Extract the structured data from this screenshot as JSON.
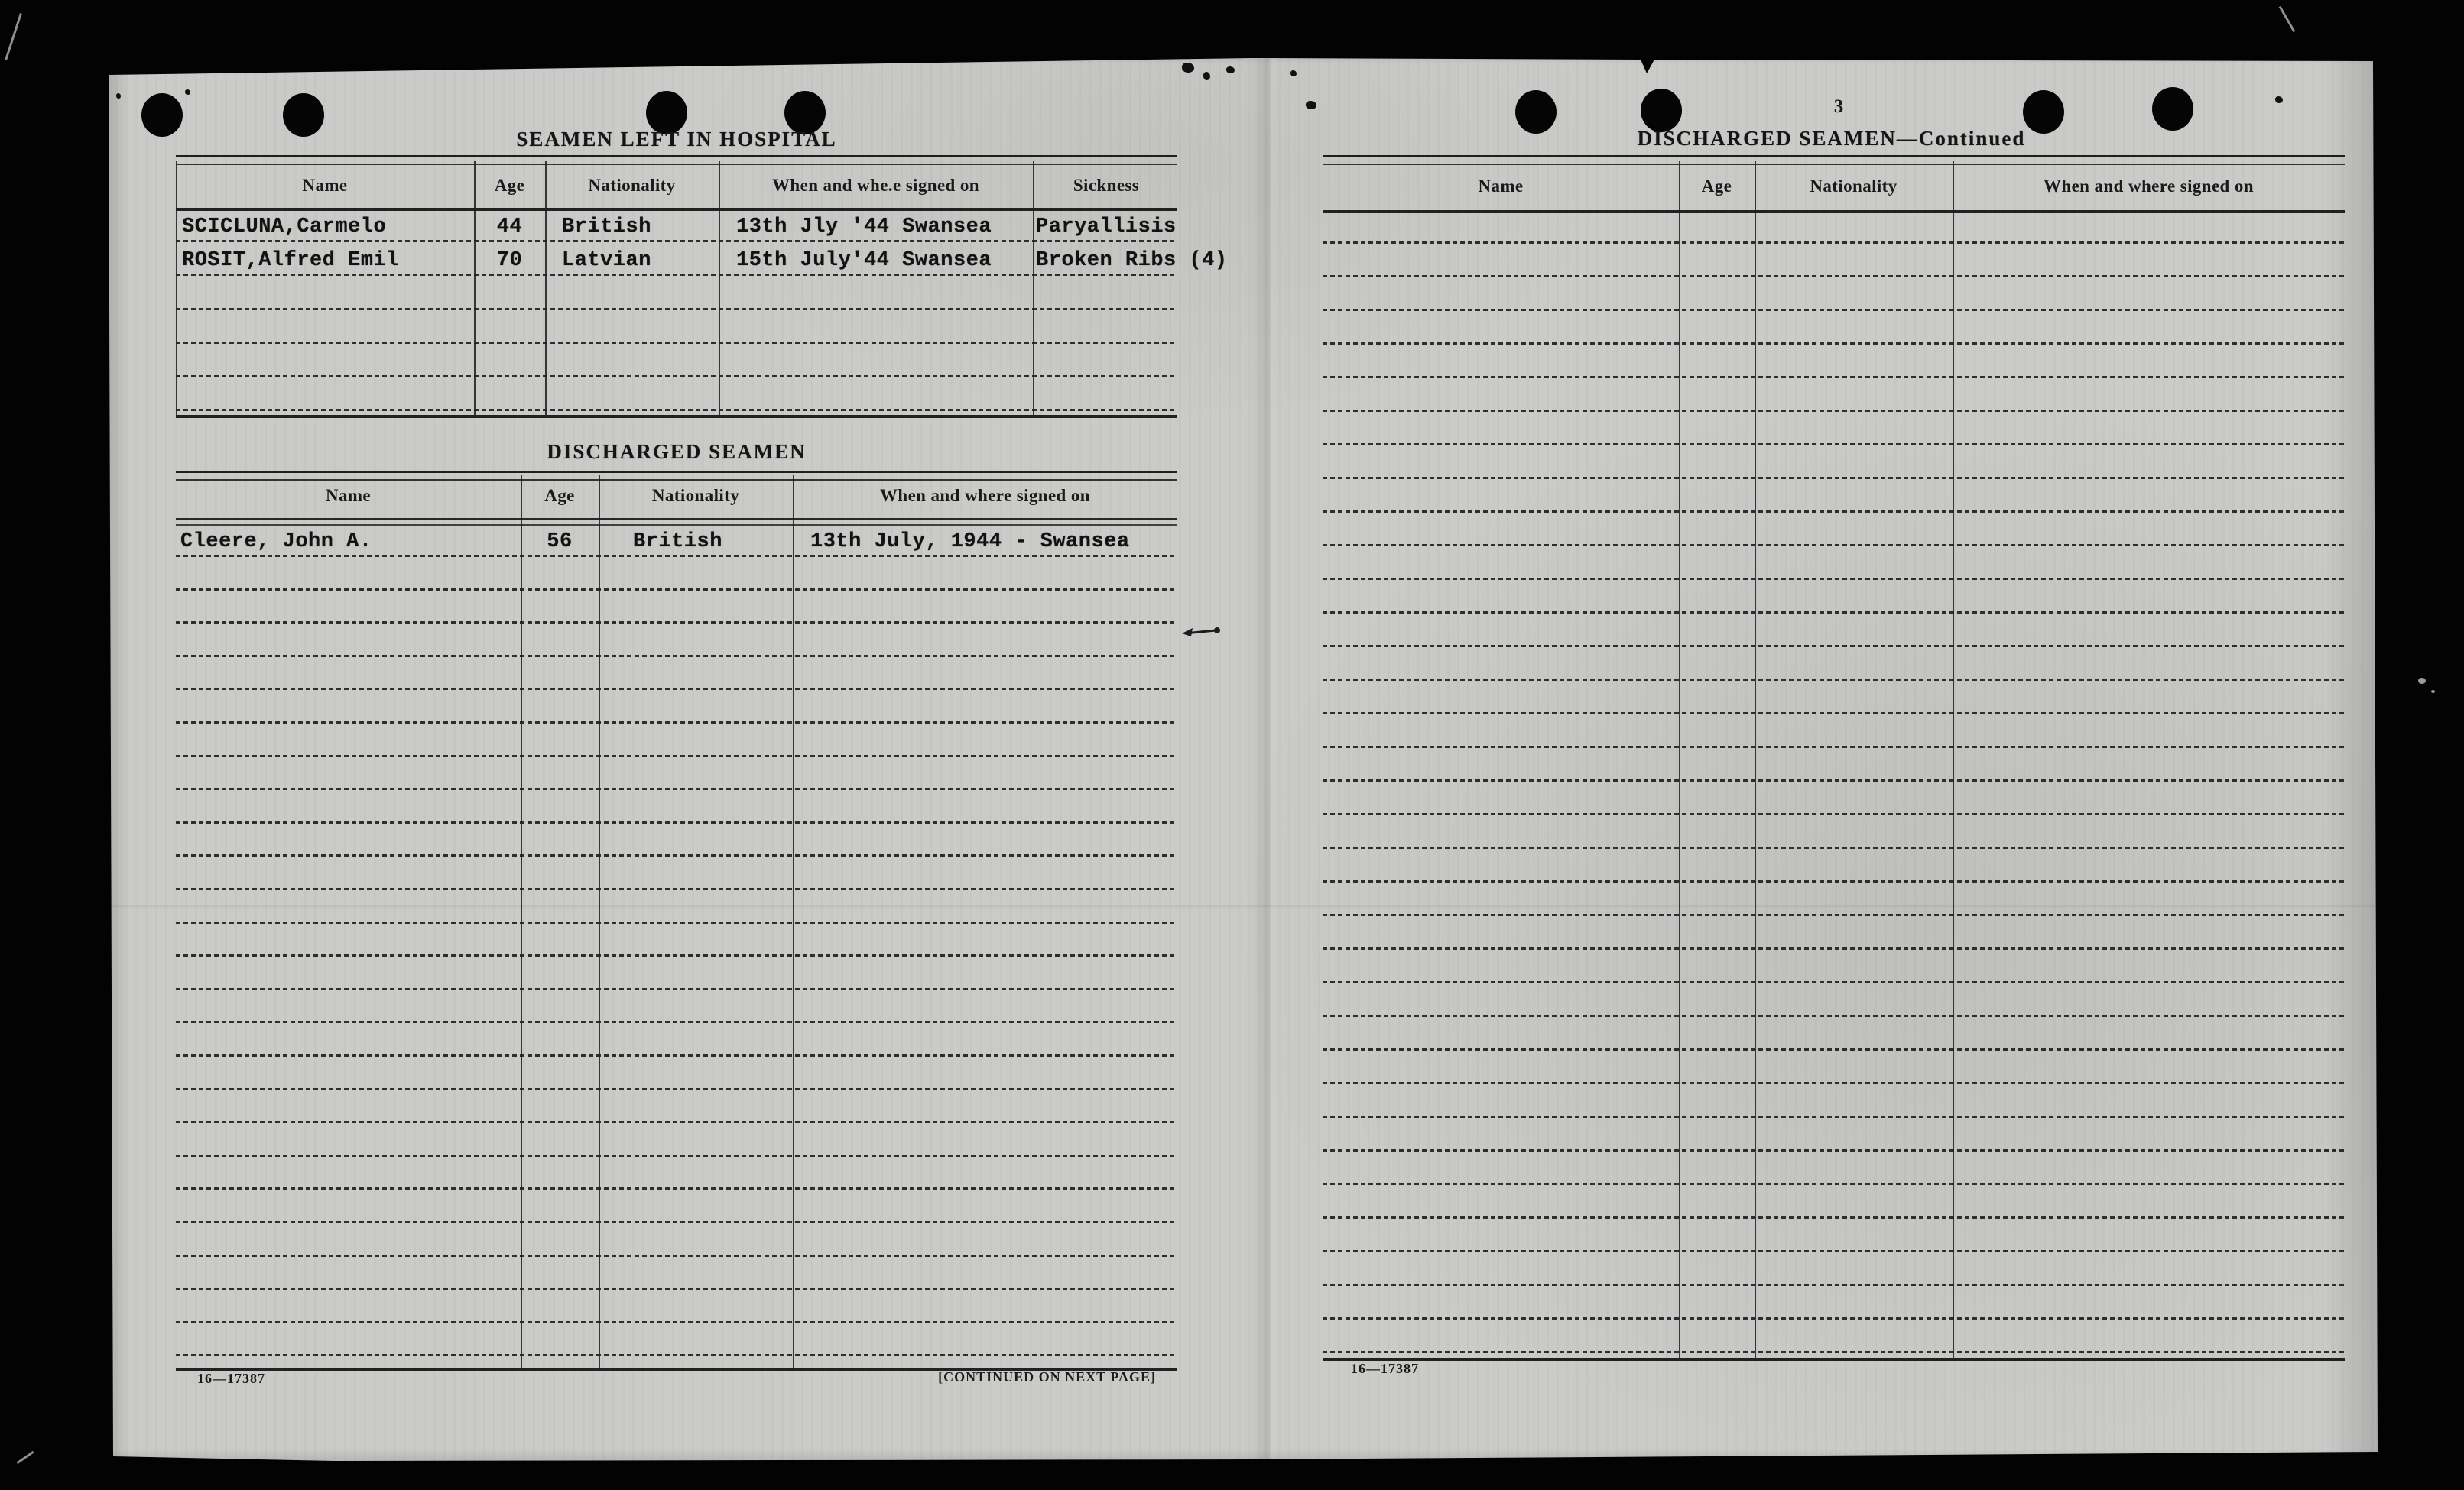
{
  "document": {
    "left_page": {
      "hospital": {
        "title": "SEAMEN LEFT IN HOSPITAL",
        "headers": [
          "Name",
          "Age",
          "Nationality",
          "When and whe.e signed on",
          "Sickness"
        ],
        "rows": [
          [
            "SCICLUNA,Carmelo",
            "44",
            "British",
            "13th Jly '44 Swansea",
            "Paryallisis"
          ],
          [
            "ROSIT,Alfred Emil",
            "70",
            "Latvian",
            "15th July'44 Swansea",
            "Broken Ribs (4)"
          ]
        ],
        "empty_rows": 4
      },
      "discharged": {
        "title": "DISCHARGED SEAMEN",
        "headers": [
          "Name",
          "Age",
          "Nationality",
          "When and where signed on"
        ],
        "rows": [
          [
            "Cleere, John A.",
            "56",
            "British",
            "13th July, 1944 - Swansea"
          ]
        ],
        "empty_rows": 24
      },
      "form_number": "16—17387",
      "continuation_note": "[CONTINUED ON NEXT PAGE]"
    },
    "right_page": {
      "page_number": "3",
      "title": "DISCHARGED SEAMEN—Continued",
      "headers": [
        "Name",
        "Age",
        "Nationality",
        "When and where signed on"
      ],
      "empty_rows": 34,
      "form_number": "16—17387"
    },
    "colors": {
      "paper": "#cacac8",
      "ink": "#1a1a1a",
      "background": "#030303"
    }
  }
}
